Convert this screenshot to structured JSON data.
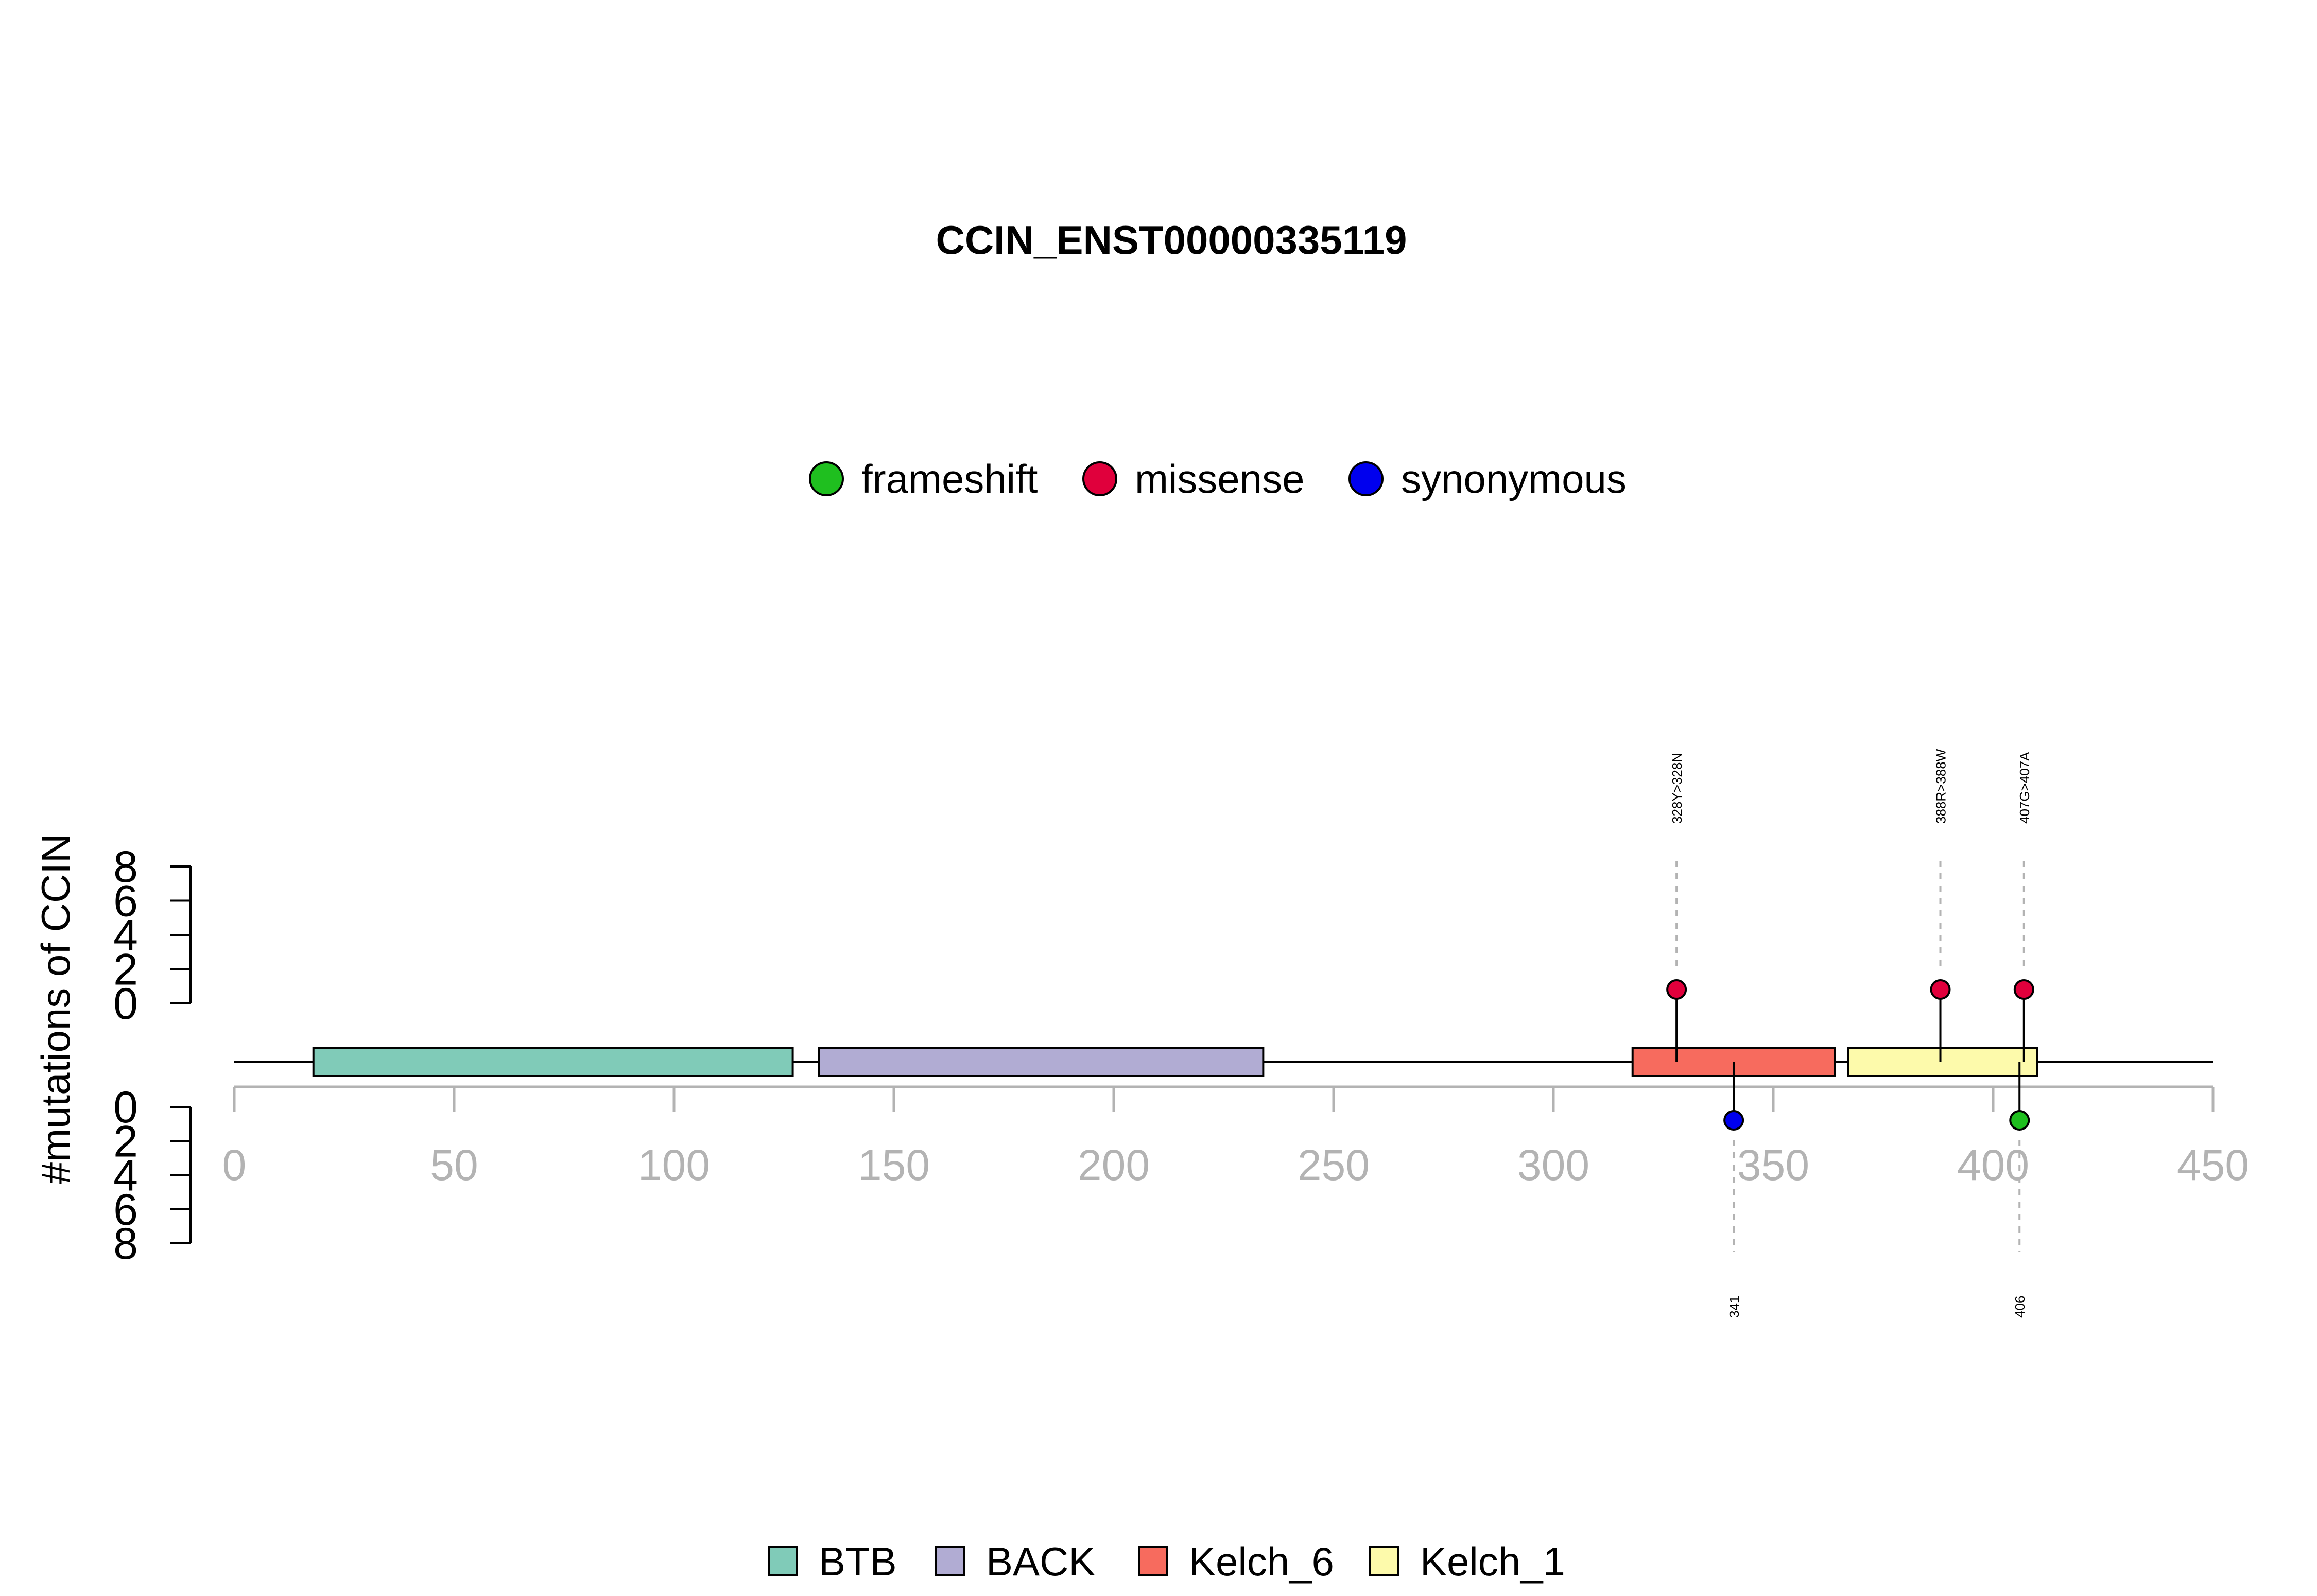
{
  "chart_data": {
    "type": "lollipop",
    "title": "CCIN_ENST00000335119",
    "ylabel": "#mutations of CCIN",
    "xlim": [
      0,
      450
    ],
    "x_ticks": [
      "0",
      "50",
      "100",
      "150",
      "200",
      "250",
      "300",
      "350",
      "400",
      "450"
    ],
    "y_ticks_top": [
      "8",
      "6",
      "4",
      "2",
      "0"
    ],
    "y_ticks_bottom": [
      "0",
      "2",
      "4",
      "6",
      "8"
    ],
    "mutation_legend": [
      {
        "name": "frameshift",
        "color": "#1fbf1f"
      },
      {
        "name": "missense",
        "color": "#e0003c"
      },
      {
        "name": "synonymous",
        "color": "#0000ee"
      }
    ],
    "domain_legend": [
      {
        "name": "BTB",
        "color": "#80cbb8"
      },
      {
        "name": "BACK",
        "color": "#b1acd3"
      },
      {
        "name": "Kelch_6",
        "color": "#f76b5e"
      },
      {
        "name": "Kelch_1",
        "color": "#fdfaab"
      }
    ],
    "domains": [
      {
        "name": "BTB",
        "start": 18,
        "end": 127,
        "color": "#80cbb8"
      },
      {
        "name": "BACK",
        "start": 133,
        "end": 234,
        "color": "#b1acd3"
      },
      {
        "name": "Kelch_6",
        "start": 318,
        "end": 364,
        "color": "#f76b5e"
      },
      {
        "name": "Kelch_1",
        "start": 367,
        "end": 410,
        "color": "#fdfaab"
      }
    ],
    "mutations_top": [
      {
        "position": 328,
        "count": 1,
        "type": "missense",
        "label": "328Y>328N"
      },
      {
        "position": 388,
        "count": 1,
        "type": "missense",
        "label": "388R>388W"
      },
      {
        "position": 407,
        "count": 1,
        "type": "missense",
        "label": "407G>407A"
      }
    ],
    "mutations_bottom": [
      {
        "position": 341,
        "count": 1,
        "type": "synonymous",
        "label": "341"
      },
      {
        "position": 406,
        "count": 1,
        "type": "frameshift",
        "label": "406"
      }
    ]
  }
}
